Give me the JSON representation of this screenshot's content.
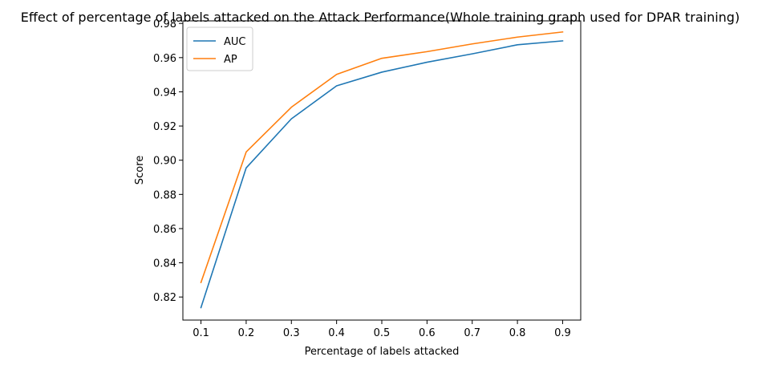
{
  "chart_data": {
    "type": "line",
    "title": "Effect of percentage of labels attacked on the Attack Performance(Whole training graph used for DPAR training)",
    "xlabel": "Percentage of labels attacked",
    "ylabel": "Score",
    "x": [
      0.1,
      0.2,
      0.3,
      0.4,
      0.5,
      0.6,
      0.7,
      0.8,
      0.9
    ],
    "x_tick_labels": [
      "0.1",
      "0.2",
      "0.3",
      "0.4",
      "0.5",
      "0.6",
      "0.7",
      "0.8",
      "0.9"
    ],
    "y_ticks": [
      0.82,
      0.84,
      0.86,
      0.88,
      0.9,
      0.92,
      0.94,
      0.96,
      0.98
    ],
    "y_tick_labels": [
      "0.82",
      "0.84",
      "0.86",
      "0.88",
      "0.90",
      "0.92",
      "0.94",
      "0.96",
      "0.98"
    ],
    "xlim": [
      0.06,
      0.94
    ],
    "ylim": [
      0.8065,
      0.9815
    ],
    "grid": false,
    "legend_position": "top-left",
    "series": [
      {
        "name": "AUC",
        "color": "#1f77b4",
        "values": [
          0.8138,
          0.8955,
          0.9242,
          0.9435,
          0.9515,
          0.9573,
          0.9622,
          0.9675,
          0.9698
        ]
      },
      {
        "name": "AP",
        "color": "#ff7f0e",
        "values": [
          0.8285,
          0.9048,
          0.931,
          0.9502,
          0.9596,
          0.9635,
          0.968,
          0.972,
          0.975
        ]
      }
    ]
  }
}
